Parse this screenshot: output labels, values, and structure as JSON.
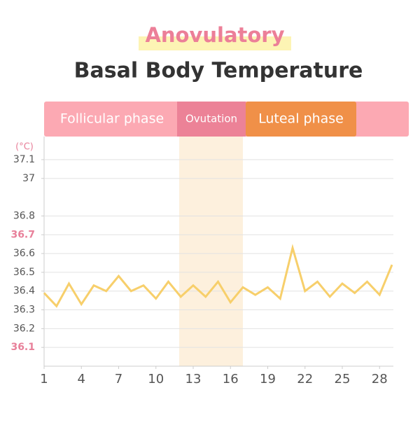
{
  "chart_data": {
    "type": "line",
    "title": "Anovulatory",
    "subtitle": "Basal Body Temperature",
    "phases": [
      "Follicular phase",
      "Ovutation",
      "Luteal phase"
    ],
    "y_unit": "(°C)",
    "x": [
      1,
      2,
      3,
      4,
      5,
      6,
      7,
      8,
      9,
      10,
      11,
      12,
      13,
      14,
      15,
      16,
      17,
      18,
      19,
      20,
      21,
      22,
      23,
      24,
      25,
      26,
      27,
      28,
      29
    ],
    "series": [
      {
        "name": "Temperature",
        "color": "#f7cf6b",
        "values": [
          36.39,
          36.32,
          36.44,
          36.33,
          36.43,
          36.4,
          36.48,
          36.4,
          36.43,
          36.36,
          36.45,
          36.37,
          36.43,
          36.37,
          36.45,
          36.34,
          36.42,
          36.38,
          36.42,
          36.36,
          36.63,
          36.4,
          36.45,
          36.37,
          36.44,
          36.39,
          36.45,
          36.38,
          36.54
        ]
      }
    ],
    "xlim": [
      1,
      29
    ],
    "xticks": [
      1,
      4,
      7,
      10,
      13,
      16,
      19,
      22,
      25,
      28
    ],
    "ylim": [
      36.0,
      37.1
    ],
    "yticks": [
      36.1,
      36.2,
      36.3,
      36.4,
      36.5,
      36.6,
      36.7,
      36.8,
      37.0,
      37.1
    ],
    "highlight_yticks": [
      36.1,
      36.7
    ],
    "highlight_color": "#e8809a",
    "grid": true
  }
}
